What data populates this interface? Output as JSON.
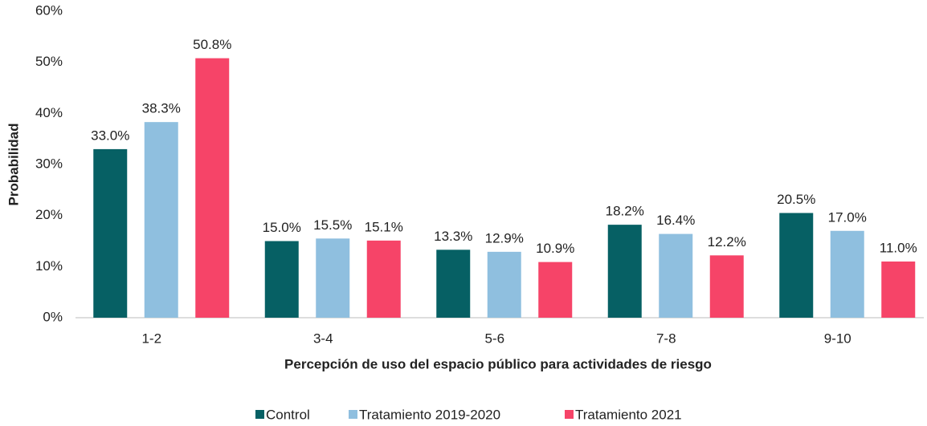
{
  "chart_data": {
    "type": "bar",
    "xlabel": "Percepción de uso del espacio público para actividades de riesgo",
    "ylabel": "Probabilidad",
    "categories": [
      "1-2",
      "3-4",
      "5-6",
      "7-8",
      "9-10"
    ],
    "series": [
      {
        "name": "Control",
        "color": "#066064",
        "values": [
          33.0,
          15.0,
          13.3,
          18.2,
          20.5
        ],
        "value_labels": [
          "33.0%",
          "15.0%",
          "13.3%",
          "18.2%",
          "20.5%"
        ]
      },
      {
        "name": "Tratamiento 2019-2020",
        "color": "#8fbfdf",
        "values": [
          38.3,
          15.5,
          12.9,
          16.4,
          17.0
        ],
        "value_labels": [
          "38.3%",
          "15.5%",
          "12.9%",
          "16.4%",
          "17.0%"
        ]
      },
      {
        "name": "Tratamiento 2021",
        "color": "#f64468",
        "values": [
          50.8,
          15.1,
          10.9,
          12.2,
          11.0
        ],
        "value_labels": [
          "50.8%",
          "15.1%",
          "10.9%",
          "12.2%",
          "11.0%"
        ]
      }
    ],
    "ylim": [
      0,
      60
    ],
    "yticks": [
      {
        "value": 0,
        "label": "0%"
      },
      {
        "value": 10,
        "label": "10%"
      },
      {
        "value": 20,
        "label": "20%"
      },
      {
        "value": 30,
        "label": "30%"
      },
      {
        "value": 40,
        "label": "40%"
      },
      {
        "value": 50,
        "label": "50%"
      },
      {
        "value": 60,
        "label": "60%"
      }
    ],
    "grid": false,
    "legend": "bottom"
  }
}
